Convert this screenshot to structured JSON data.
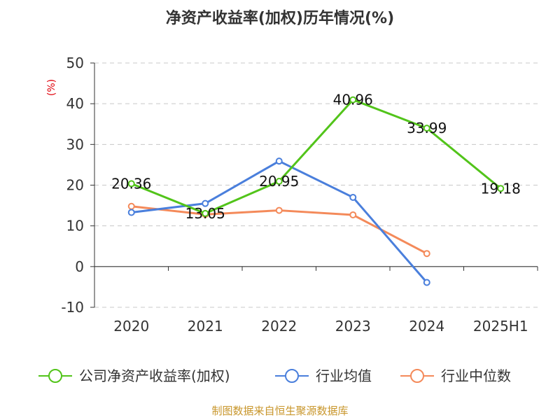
{
  "chart_data": {
    "type": "line",
    "title": "净资产收益率(加权)历年情况(%)",
    "ylabel": "(%)",
    "categories": [
      "2020",
      "2021",
      "2022",
      "2023",
      "2024",
      "2025H1"
    ],
    "ylim": [
      -10,
      50
    ],
    "yticks": [
      50,
      40,
      30,
      20,
      10,
      0,
      -10
    ],
    "grid": true,
    "legend_position": "bottom",
    "series": [
      {
        "name": "公司净资产收益率(加权)",
        "color": "#52c41a",
        "values": [
          20.36,
          13.05,
          20.95,
          40.96,
          33.99,
          19.18
        ],
        "labels": [
          "20.36",
          "13.05",
          "20.95",
          "40.96",
          "33.99",
          "19.18"
        ]
      },
      {
        "name": "行业均值",
        "color": "#4a7fdc",
        "values": [
          13.3,
          15.5,
          25.9,
          17.0,
          -3.9,
          null
        ]
      },
      {
        "name": "行业中位数",
        "color": "#f48a5a",
        "values": [
          14.8,
          12.8,
          13.8,
          12.7,
          3.2,
          null
        ]
      }
    ]
  },
  "source": "制图数据来自恒生聚源数据库"
}
